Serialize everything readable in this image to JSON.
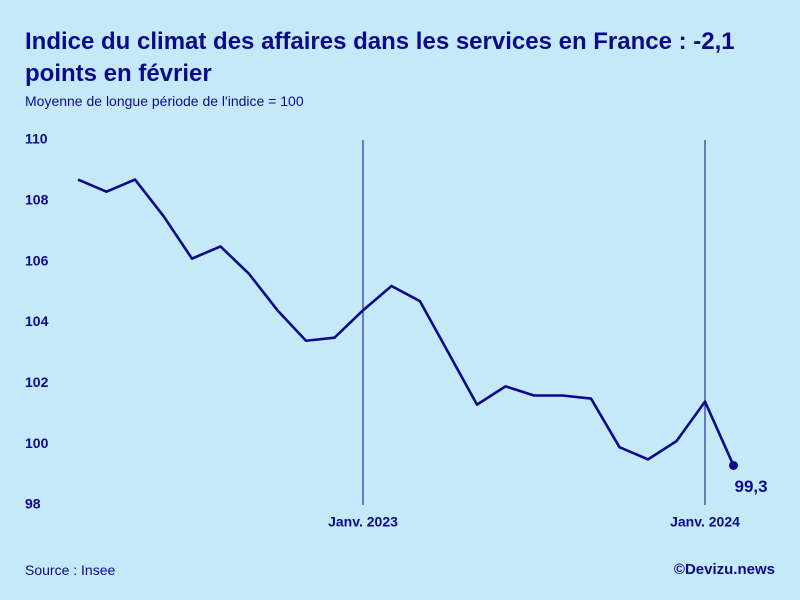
{
  "chart_data": {
    "type": "line",
    "title": "Indice du climat des affaires dans les services en France : -2,1 points en février",
    "subtitle": "Moyenne de longue période de l'indice = 100",
    "source": "Source : Insee",
    "credit": "©Devizu.news",
    "categories": [
      null,
      null,
      null,
      null,
      null,
      null,
      null,
      null,
      null,
      null,
      "Janv. 2023",
      null,
      null,
      null,
      null,
      null,
      null,
      null,
      null,
      null,
      null,
      null,
      "Janv. 2024",
      null
    ],
    "values": [
      108.7,
      108.3,
      108.7,
      107.5,
      106.1,
      106.5,
      105.6,
      104.4,
      103.4,
      103.5,
      104.4,
      105.2,
      104.7,
      103.0,
      101.3,
      101.9,
      101.6,
      101.6,
      101.5,
      99.9,
      99.5,
      100.1,
      101.4,
      99.3
    ],
    "value_labels": [
      null,
      null,
      null,
      null,
      null,
      null,
      null,
      null,
      null,
      null,
      null,
      null,
      null,
      null,
      null,
      null,
      null,
      null,
      null,
      null,
      null,
      null,
      null,
      "99,3"
    ],
    "color": "#0b0b8a",
    "ylim": [
      98,
      110
    ],
    "yticks": [
      98,
      100,
      102,
      104,
      106,
      108,
      110
    ],
    "grid": false
  }
}
